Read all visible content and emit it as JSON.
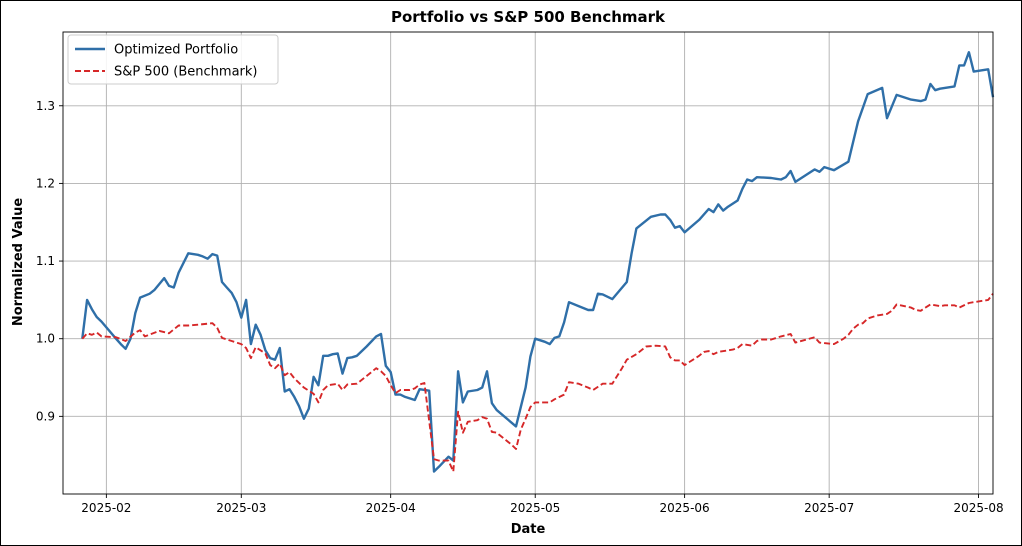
{
  "chart_data": {
    "type": "line",
    "title": "Portfolio vs S&P 500 Benchmark",
    "xlabel": "Date",
    "ylabel": "Normalized Value",
    "grid": true,
    "legend_position": "top-left",
    "xlim": [
      "2025-01-23",
      "2025-08-04"
    ],
    "ylim": [
      0.8,
      1.395
    ],
    "x_ticks": [
      "2025-02-01",
      "2025-03-01",
      "2025-04-01",
      "2025-05-01",
      "2025-06-01",
      "2025-07-01",
      "2025-08-01"
    ],
    "x_tick_labels": [
      "2025-02",
      "2025-03",
      "2025-04",
      "2025-05",
      "2025-06",
      "2025-07",
      "2025-08"
    ],
    "y_ticks": [
      0.9,
      1.0,
      1.1,
      1.2,
      1.3
    ],
    "y_tick_labels": [
      "0.9",
      "1.0",
      "1.1",
      "1.2",
      "1.3"
    ],
    "series": [
      {
        "name": "Optimized Portfolio",
        "color": "#2f6fa8",
        "style": "solid",
        "points": [
          [
            "2025-01-27",
            1.0
          ],
          [
            "2025-01-28",
            1.05
          ],
          [
            "2025-01-29",
            1.038
          ],
          [
            "2025-01-30",
            1.028
          ],
          [
            "2025-01-31",
            1.022
          ],
          [
            "2025-02-03",
            1.0
          ],
          [
            "2025-02-04",
            0.993
          ],
          [
            "2025-02-05",
            0.987
          ],
          [
            "2025-02-06",
            1.0
          ],
          [
            "2025-02-07",
            1.033
          ],
          [
            "2025-02-08",
            1.053
          ],
          [
            "2025-02-10",
            1.058
          ],
          [
            "2025-02-11",
            1.063
          ],
          [
            "2025-02-13",
            1.078
          ],
          [
            "2025-02-14",
            1.068
          ],
          [
            "2025-02-15",
            1.066
          ],
          [
            "2025-02-16",
            1.085
          ],
          [
            "2025-02-18",
            1.11
          ],
          [
            "2025-02-20",
            1.108
          ],
          [
            "2025-02-21",
            1.106
          ],
          [
            "2025-02-22",
            1.103
          ],
          [
            "2025-02-23",
            1.109
          ],
          [
            "2025-02-24",
            1.107
          ],
          [
            "2025-02-25",
            1.073
          ],
          [
            "2025-02-26",
            1.066
          ],
          [
            "2025-02-27",
            1.059
          ],
          [
            "2025-02-28",
            1.047
          ],
          [
            "2025-03-01",
            1.027
          ],
          [
            "2025-03-02",
            1.05
          ],
          [
            "2025-03-03",
            0.993
          ],
          [
            "2025-03-04",
            1.018
          ],
          [
            "2025-03-05",
            1.005
          ],
          [
            "2025-03-06",
            0.985
          ],
          [
            "2025-03-07",
            0.975
          ],
          [
            "2025-03-08",
            0.973
          ],
          [
            "2025-03-09",
            0.988
          ],
          [
            "2025-03-10",
            0.932
          ],
          [
            "2025-03-11",
            0.935
          ],
          [
            "2025-03-12",
            0.925
          ],
          [
            "2025-03-13",
            0.913
          ],
          [
            "2025-03-14",
            0.897
          ],
          [
            "2025-03-15",
            0.91
          ],
          [
            "2025-03-16",
            0.951
          ],
          [
            "2025-03-17",
            0.94
          ],
          [
            "2025-03-18",
            0.978
          ],
          [
            "2025-03-19",
            0.978
          ],
          [
            "2025-03-20",
            0.98
          ],
          [
            "2025-03-21",
            0.981
          ],
          [
            "2025-03-22",
            0.955
          ],
          [
            "2025-03-23",
            0.975
          ],
          [
            "2025-03-24",
            0.976
          ],
          [
            "2025-03-25",
            0.978
          ],
          [
            "2025-03-27",
            0.99
          ],
          [
            "2025-03-29",
            1.003
          ],
          [
            "2025-03-30",
            1.006
          ],
          [
            "2025-03-31",
            0.965
          ],
          [
            "2025-04-01",
            0.957
          ],
          [
            "2025-04-02",
            0.928
          ],
          [
            "2025-04-03",
            0.928
          ],
          [
            "2025-04-04",
            0.925
          ],
          [
            "2025-04-06",
            0.921
          ],
          [
            "2025-04-07",
            0.935
          ],
          [
            "2025-04-09",
            0.933
          ],
          [
            "2025-04-10",
            0.829
          ],
          [
            "2025-04-11",
            0.835
          ],
          [
            "2025-04-13",
            0.848
          ],
          [
            "2025-04-14",
            0.843
          ],
          [
            "2025-04-15",
            0.958
          ],
          [
            "2025-04-16",
            0.918
          ],
          [
            "2025-04-17",
            0.932
          ],
          [
            "2025-04-19",
            0.934
          ],
          [
            "2025-04-20",
            0.937
          ],
          [
            "2025-04-21",
            0.958
          ],
          [
            "2025-04-22",
            0.917
          ],
          [
            "2025-04-23",
            0.908
          ],
          [
            "2025-04-27",
            0.887
          ],
          [
            "2025-04-29",
            0.937
          ],
          [
            "2025-04-30",
            0.977
          ],
          [
            "2025-05-01",
            1.0
          ],
          [
            "2025-05-03",
            0.996
          ],
          [
            "2025-05-04",
            0.993
          ],
          [
            "2025-05-05",
            1.001
          ],
          [
            "2025-05-06",
            1.003
          ],
          [
            "2025-05-07",
            1.021
          ],
          [
            "2025-05-08",
            1.047
          ],
          [
            "2025-05-10",
            1.042
          ],
          [
            "2025-05-12",
            1.037
          ],
          [
            "2025-05-13",
            1.037
          ],
          [
            "2025-05-14",
            1.058
          ],
          [
            "2025-05-15",
            1.057
          ],
          [
            "2025-05-17",
            1.051
          ],
          [
            "2025-05-20",
            1.073
          ],
          [
            "2025-05-21",
            1.11
          ],
          [
            "2025-05-22",
            1.142
          ],
          [
            "2025-05-25",
            1.157
          ],
          [
            "2025-05-27",
            1.16
          ],
          [
            "2025-05-28",
            1.16
          ],
          [
            "2025-05-29",
            1.153
          ],
          [
            "2025-05-30",
            1.143
          ],
          [
            "2025-05-31",
            1.145
          ],
          [
            "2025-06-01",
            1.137
          ],
          [
            "2025-06-04",
            1.153
          ],
          [
            "2025-06-06",
            1.167
          ],
          [
            "2025-06-07",
            1.163
          ],
          [
            "2025-06-08",
            1.173
          ],
          [
            "2025-06-09",
            1.165
          ],
          [
            "2025-06-10",
            1.17
          ],
          [
            "2025-06-12",
            1.178
          ],
          [
            "2025-06-13",
            1.193
          ],
          [
            "2025-06-14",
            1.205
          ],
          [
            "2025-06-15",
            1.203
          ],
          [
            "2025-06-16",
            1.208
          ],
          [
            "2025-06-19",
            1.207
          ],
          [
            "2025-06-20",
            1.206
          ],
          [
            "2025-06-21",
            1.205
          ],
          [
            "2025-06-22",
            1.208
          ],
          [
            "2025-06-23",
            1.216
          ],
          [
            "2025-06-24",
            1.202
          ],
          [
            "2025-06-28",
            1.218
          ],
          [
            "2025-06-29",
            1.215
          ],
          [
            "2025-06-30",
            1.221
          ],
          [
            "2025-07-02",
            1.217
          ],
          [
            "2025-07-05",
            1.228
          ],
          [
            "2025-07-07",
            1.28
          ],
          [
            "2025-07-09",
            1.315
          ],
          [
            "2025-07-12",
            1.323
          ],
          [
            "2025-07-13",
            1.284
          ],
          [
            "2025-07-15",
            1.314
          ],
          [
            "2025-07-18",
            1.308
          ],
          [
            "2025-07-20",
            1.306
          ],
          [
            "2025-07-21",
            1.308
          ],
          [
            "2025-07-22",
            1.328
          ],
          [
            "2025-07-23",
            1.32
          ],
          [
            "2025-07-24",
            1.322
          ],
          [
            "2025-07-27",
            1.325
          ],
          [
            "2025-07-28",
            1.352
          ],
          [
            "2025-07-29",
            1.352
          ],
          [
            "2025-07-30",
            1.369
          ],
          [
            "2025-07-31",
            1.344
          ],
          [
            "2025-08-03",
            1.347
          ],
          [
            "2025-08-04",
            1.311
          ]
        ]
      },
      {
        "name": "S&P 500 (Benchmark)",
        "color": "#d62728",
        "style": "dashed",
        "points": [
          [
            "2025-01-27",
            1.0
          ],
          [
            "2025-01-28",
            1.007
          ],
          [
            "2025-01-29",
            1.005
          ],
          [
            "2025-01-30",
            1.008
          ],
          [
            "2025-01-31",
            1.003
          ],
          [
            "2025-02-03",
            1.002
          ],
          [
            "2025-02-05",
            0.997
          ],
          [
            "2025-02-07",
            1.008
          ],
          [
            "2025-02-08",
            1.011
          ],
          [
            "2025-02-09",
            1.003
          ],
          [
            "2025-02-12",
            1.01
          ],
          [
            "2025-02-14",
            1.007
          ],
          [
            "2025-02-16",
            1.017
          ],
          [
            "2025-02-18",
            1.017
          ],
          [
            "2025-02-20",
            1.018
          ],
          [
            "2025-02-23",
            1.02
          ],
          [
            "2025-02-24",
            1.014
          ],
          [
            "2025-02-25",
            1.001
          ],
          [
            "2025-02-27",
            0.997
          ],
          [
            "2025-03-01",
            0.993
          ],
          [
            "2025-03-02",
            0.988
          ],
          [
            "2025-03-03",
            0.975
          ],
          [
            "2025-03-04",
            0.989
          ],
          [
            "2025-03-06",
            0.981
          ],
          [
            "2025-03-07",
            0.966
          ],
          [
            "2025-03-08",
            0.962
          ],
          [
            "2025-03-09",
            0.968
          ],
          [
            "2025-03-10",
            0.953
          ],
          [
            "2025-03-11",
            0.957
          ],
          [
            "2025-03-12",
            0.949
          ],
          [
            "2025-03-14",
            0.937
          ],
          [
            "2025-03-15",
            0.933
          ],
          [
            "2025-03-16",
            0.929
          ],
          [
            "2025-03-17",
            0.918
          ],
          [
            "2025-03-18",
            0.934
          ],
          [
            "2025-03-19",
            0.94
          ],
          [
            "2025-03-21",
            0.942
          ],
          [
            "2025-03-22",
            0.934
          ],
          [
            "2025-03-23",
            0.941
          ],
          [
            "2025-03-25",
            0.942
          ],
          [
            "2025-03-27",
            0.952
          ],
          [
            "2025-03-29",
            0.962
          ],
          [
            "2025-03-30",
            0.958
          ],
          [
            "2025-03-31",
            0.952
          ],
          [
            "2025-04-01",
            0.94
          ],
          [
            "2025-04-02",
            0.93
          ],
          [
            "2025-04-03",
            0.934
          ],
          [
            "2025-04-05",
            0.934
          ],
          [
            "2025-04-06",
            0.936
          ],
          [
            "2025-04-07",
            0.941
          ],
          [
            "2025-04-08",
            0.943
          ],
          [
            "2025-04-10",
            0.845
          ],
          [
            "2025-04-11",
            0.843
          ],
          [
            "2025-04-13",
            0.843
          ],
          [
            "2025-04-14",
            0.829
          ],
          [
            "2025-04-15",
            0.906
          ],
          [
            "2025-04-16",
            0.879
          ],
          [
            "2025-04-17",
            0.893
          ],
          [
            "2025-04-19",
            0.895
          ],
          [
            "2025-04-20",
            0.899
          ],
          [
            "2025-04-21",
            0.897
          ],
          [
            "2025-04-22",
            0.88
          ],
          [
            "2025-04-23",
            0.879
          ],
          [
            "2025-04-26",
            0.864
          ],
          [
            "2025-04-27",
            0.858
          ],
          [
            "2025-04-28",
            0.883
          ],
          [
            "2025-04-29",
            0.897
          ],
          [
            "2025-04-30",
            0.912
          ],
          [
            "2025-05-01",
            0.918
          ],
          [
            "2025-05-04",
            0.918
          ],
          [
            "2025-05-05",
            0.922
          ],
          [
            "2025-05-07",
            0.928
          ],
          [
            "2025-05-08",
            0.944
          ],
          [
            "2025-05-10",
            0.942
          ],
          [
            "2025-05-12",
            0.937
          ],
          [
            "2025-05-13",
            0.934
          ],
          [
            "2025-05-15",
            0.942
          ],
          [
            "2025-05-17",
            0.942
          ],
          [
            "2025-05-19",
            0.962
          ],
          [
            "2025-05-20",
            0.973
          ],
          [
            "2025-05-22",
            0.98
          ],
          [
            "2025-05-24",
            0.99
          ],
          [
            "2025-05-26",
            0.991
          ],
          [
            "2025-05-28",
            0.99
          ],
          [
            "2025-05-29",
            0.976
          ],
          [
            "2025-05-30",
            0.972
          ],
          [
            "2025-05-31",
            0.972
          ],
          [
            "2025-06-01",
            0.966
          ],
          [
            "2025-06-02",
            0.97
          ],
          [
            "2025-06-04",
            0.978
          ],
          [
            "2025-06-05",
            0.983
          ],
          [
            "2025-06-06",
            0.984
          ],
          [
            "2025-06-07",
            0.98
          ],
          [
            "2025-06-08",
            0.983
          ],
          [
            "2025-06-11",
            0.986
          ],
          [
            "2025-06-12",
            0.988
          ],
          [
            "2025-06-13",
            0.993
          ],
          [
            "2025-06-15",
            0.991
          ],
          [
            "2025-06-16",
            0.997
          ],
          [
            "2025-06-17",
            0.999
          ],
          [
            "2025-06-19",
            0.999
          ],
          [
            "2025-06-21",
            1.003
          ],
          [
            "2025-06-23",
            1.006
          ],
          [
            "2025-06-24",
            0.995
          ],
          [
            "2025-06-28",
            1.002
          ],
          [
            "2025-06-29",
            0.995
          ],
          [
            "2025-07-02",
            0.993
          ],
          [
            "2025-07-04",
            1.0
          ],
          [
            "2025-07-05",
            1.005
          ],
          [
            "2025-07-06",
            1.013
          ],
          [
            "2025-07-07",
            1.018
          ],
          [
            "2025-07-08",
            1.02
          ],
          [
            "2025-07-09",
            1.026
          ],
          [
            "2025-07-11",
            1.03
          ],
          [
            "2025-07-13",
            1.032
          ],
          [
            "2025-07-14",
            1.036
          ],
          [
            "2025-07-15",
            1.044
          ],
          [
            "2025-07-18",
            1.04
          ],
          [
            "2025-07-19",
            1.037
          ],
          [
            "2025-07-20",
            1.036
          ],
          [
            "2025-07-21",
            1.04
          ],
          [
            "2025-07-22",
            1.044
          ],
          [
            "2025-07-24",
            1.042
          ],
          [
            "2025-07-25",
            1.043
          ],
          [
            "2025-07-27",
            1.043
          ],
          [
            "2025-07-28",
            1.04
          ],
          [
            "2025-07-30",
            1.046
          ],
          [
            "2025-08-01",
            1.048
          ],
          [
            "2025-08-02",
            1.049
          ],
          [
            "2025-08-03",
            1.05
          ],
          [
            "2025-08-04",
            1.058
          ]
        ]
      }
    ]
  }
}
